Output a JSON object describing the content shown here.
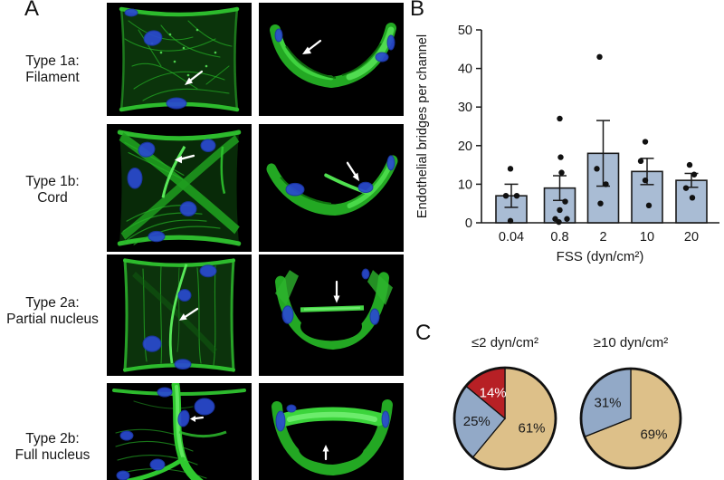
{
  "panels": {
    "a": {
      "label": "A",
      "rows": [
        {
          "line1": "Type 1a:",
          "line2": "Filament"
        },
        {
          "line1": "Type 1b:",
          "line2": "Cord"
        },
        {
          "line1": "Type 2a:",
          "line2": "Partial nucleus"
        },
        {
          "line1": "Type 2b:",
          "line2": "Full nucleus"
        }
      ]
    },
    "b": {
      "label": "B"
    },
    "c": {
      "label": "C"
    }
  },
  "chart_data": [
    {
      "type": "bar",
      "title": "",
      "xlabel": "FSS (dyn/cm²)",
      "ylabel": "Endothelial bridges per channel",
      "categories": [
        "0.04",
        "0.8",
        "2",
        "10",
        "20"
      ],
      "means": [
        7,
        9,
        18,
        13.3,
        11
      ],
      "sem": [
        3,
        3.2,
        8.5,
        3.4,
        1.8
      ],
      "points": [
        [
          14,
          7,
          7,
          0.5
        ],
        [
          27,
          17,
          13,
          5.5,
          3.3,
          1,
          1,
          0.2
        ],
        [
          43,
          14,
          10,
          5
        ],
        [
          21,
          16,
          11,
          4.5
        ],
        [
          15,
          12.5,
          9,
          6.5
        ]
      ],
      "ylim": [
        0,
        50
      ],
      "yticks": [
        0,
        10,
        20,
        30,
        40,
        50
      ],
      "grid": false,
      "legend": "none",
      "bar_color": "#a9bcd4",
      "bar_border_color": "#1a1a1a",
      "point_color": "#111111",
      "error_bar_style": "mean ± SEM"
    },
    {
      "type": "pie",
      "title": "≤2 dyn/cm²",
      "start_angle_deg": 0,
      "direction": "clockwise",
      "slices": [
        {
          "label": "61%",
          "value": 61,
          "color": "#ddc089",
          "text_color": "#1a1a1a"
        },
        {
          "label": "25%",
          "value": 25,
          "color": "#92a9c7",
          "text_color": "#1a1a1a"
        },
        {
          "label": "14%",
          "value": 14,
          "color": "#b72025",
          "text_color": "#ffffff"
        }
      ]
    },
    {
      "type": "pie",
      "title": "≥10 dyn/cm²",
      "start_angle_deg": 0,
      "direction": "clockwise",
      "slices": [
        {
          "label": "69%",
          "value": 69,
          "color": "#ddc089",
          "text_color": "#1a1a1a"
        },
        {
          "label": "31%",
          "value": 31,
          "color": "#92a9c7",
          "text_color": "#1a1a1a"
        }
      ]
    }
  ]
}
